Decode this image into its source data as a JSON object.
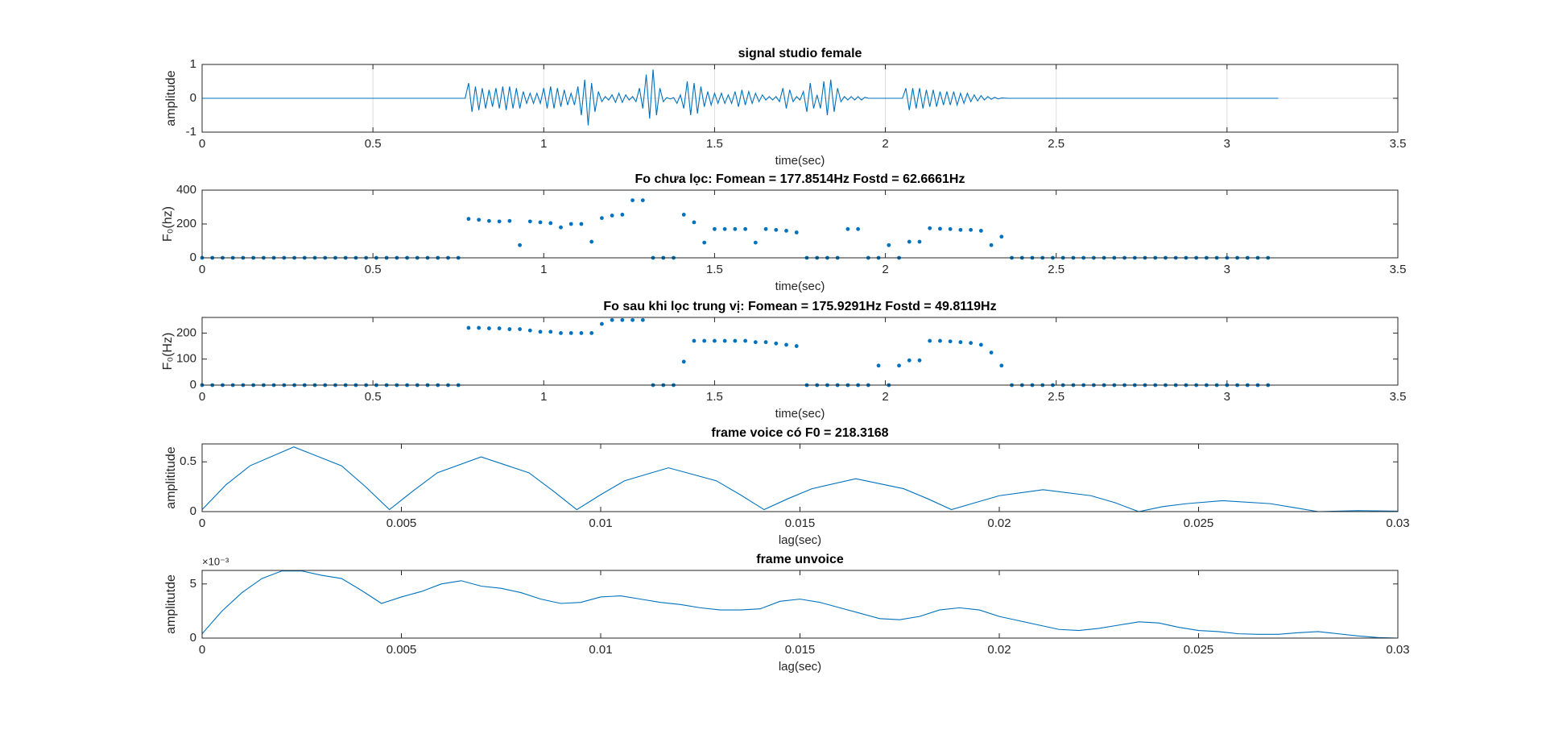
{
  "chart_data": [
    {
      "type": "line",
      "title": "signal studio female",
      "x_label": "time(sec)",
      "y_label": "amplitude",
      "color": "#0072bd",
      "grid": true,
      "x": [
        0,
        0.77,
        0.78,
        0.79,
        0.8,
        0.81,
        0.82,
        0.83,
        0.84,
        0.85,
        0.86,
        0.87,
        0.88,
        0.89,
        0.9,
        0.91,
        0.92,
        0.93,
        0.94,
        0.95,
        0.96,
        0.97,
        0.98,
        0.99,
        1,
        1.01,
        1.02,
        1.03,
        1.04,
        1.05,
        1.06,
        1.07,
        1.08,
        1.09,
        1.1,
        1.11,
        1.12,
        1.13,
        1.14,
        1.15,
        1.16,
        1.17,
        1.18,
        1.19,
        1.2,
        1.21,
        1.22,
        1.23,
        1.24,
        1.25,
        1.26,
        1.27,
        1.28,
        1.29,
        1.3,
        1.31,
        1.32,
        1.33,
        1.34,
        1.35,
        1.36,
        1.37,
        1.38,
        1.39,
        1.4,
        1.41,
        1.42,
        1.43,
        1.44,
        1.45,
        1.46,
        1.47,
        1.48,
        1.49,
        1.5,
        1.51,
        1.52,
        1.53,
        1.54,
        1.55,
        1.56,
        1.57,
        1.58,
        1.59,
        1.6,
        1.61,
        1.62,
        1.63,
        1.64,
        1.65,
        1.66,
        1.67,
        1.68,
        1.69,
        1.7,
        1.71,
        1.72,
        1.73,
        1.74,
        1.75,
        1.76,
        1.77,
        1.78,
        1.79,
        1.8,
        1.81,
        1.82,
        1.83,
        1.84,
        1.85,
        1.86,
        1.87,
        1.88,
        1.89,
        1.9,
        1.91,
        1.92,
        1.93,
        1.94,
        1.95,
        2.05,
        2.06,
        2.07,
        2.08,
        2.09,
        2.1,
        2.11,
        2.12,
        2.13,
        2.14,
        2.15,
        2.16,
        2.17,
        2.18,
        2.19,
        2.2,
        2.21,
        2.22,
        2.23,
        2.24,
        2.25,
        2.26,
        2.27,
        2.28,
        2.29,
        2.3,
        2.31,
        2.32,
        2.33,
        2.34,
        2.36,
        3.15
      ],
      "values": [
        0,
        0,
        0.45,
        -0.4,
        0.35,
        -0.35,
        0.3,
        -0.3,
        0.25,
        -0.25,
        0.3,
        -0.3,
        0.35,
        -0.35,
        0.35,
        -0.3,
        0.3,
        -0.3,
        0.2,
        -0.15,
        0.15,
        -0.15,
        0.15,
        -0.15,
        0.3,
        -0.3,
        0.35,
        -0.3,
        0.3,
        -0.25,
        0.25,
        -0.2,
        0.15,
        -0.2,
        0.35,
        -0.5,
        0.55,
        -0.8,
        0.45,
        -0.4,
        0.2,
        -0.1,
        0.05,
        -0.05,
        0.1,
        -0.12,
        0.15,
        -0.12,
        0.1,
        -0.05,
        0.05,
        -0.1,
        0.3,
        -0.3,
        0.7,
        -0.6,
        0.85,
        -0.5,
        0.3,
        -0.1,
        0.02,
        -0.02,
        0.02,
        -0.15,
        0.1,
        -0.3,
        0.5,
        -0.5,
        0.45,
        -0.45,
        0.35,
        -0.25,
        0.2,
        -0.2,
        0.15,
        -0.15,
        0.15,
        -0.15,
        0.1,
        -0.15,
        0.2,
        -0.25,
        0.25,
        -0.2,
        0.2,
        -0.15,
        0.15,
        -0.1,
        0.1,
        -0.05,
        0.05,
        -0.05,
        0.05,
        -0.1,
        0.3,
        -0.3,
        0.25,
        -0.1,
        0.05,
        -0.05,
        0.2,
        -0.4,
        0.45,
        -0.3,
        0.1,
        -0.3,
        0.5,
        -0.5,
        0.55,
        -0.4,
        0.3,
        -0.1,
        0.05,
        -0.05,
        0.05,
        -0.05,
        0.05,
        -0.05,
        0.03,
        0,
        0,
        0.3,
        -0.35,
        0.3,
        -0.3,
        0.3,
        -0.3,
        0.25,
        -0.25,
        0.25,
        -0.25,
        0.2,
        -0.2,
        0.2,
        -0.2,
        0.2,
        -0.2,
        0.15,
        -0.15,
        0.15,
        -0.1,
        0.1,
        -0.08,
        0.08,
        -0.05,
        0.05,
        -0.03,
        0.03,
        -0.02,
        0.01,
        0,
        0
      ],
      "xlim": [
        0,
        3.5
      ],
      "xticks": [
        0,
        0.5,
        1,
        1.5,
        2,
        2.5,
        3,
        3.5
      ],
      "ylim": [
        -1,
        1
      ],
      "yticks": [
        -1,
        0,
        1
      ]
    },
    {
      "type": "scatter",
      "title": "Fo chưa lọc: Fomean = 177.8514Hz  Fostd = 62.6661Hz",
      "x_label": "time(sec)",
      "y_label": "F₀(hz)",
      "color": "#0072bd",
      "grid": false,
      "x": [
        0,
        0.03,
        0.06,
        0.09,
        0.12,
        0.15,
        0.18,
        0.21,
        0.24,
        0.27,
        0.3,
        0.33,
        0.36,
        0.39,
        0.42,
        0.45,
        0.48,
        0.51,
        0.54,
        0.57,
        0.6,
        0.63,
        0.66,
        0.69,
        0.72,
        0.75,
        0.78,
        0.81,
        0.84,
        0.87,
        0.9,
        0.93,
        0.96,
        0.99,
        1.02,
        1.05,
        1.08,
        1.11,
        1.14,
        1.17,
        1.2,
        1.23,
        1.26,
        1.29,
        1.32,
        1.35,
        1.38,
        1.41,
        1.44,
        1.47,
        1.5,
        1.53,
        1.56,
        1.59,
        1.62,
        1.65,
        1.68,
        1.71,
        1.74,
        1.77,
        1.8,
        1.83,
        1.86,
        1.89,
        1.92,
        1.95,
        1.98,
        2.01,
        2.04,
        2.07,
        2.1,
        2.13,
        2.16,
        2.19,
        2.22,
        2.25,
        2.28,
        2.31,
        2.34,
        2.37,
        2.4,
        2.43,
        2.46,
        2.49,
        2.52,
        2.55,
        2.58,
        2.61,
        2.64,
        2.67,
        2.7,
        2.73,
        2.76,
        2.79,
        2.82,
        2.85,
        2.88,
        2.91,
        2.94,
        2.97,
        3,
        3.03,
        3.06,
        3.09,
        3.12
      ],
      "values": [
        0,
        0,
        0,
        0,
        0,
        0,
        0,
        0,
        0,
        0,
        0,
        0,
        0,
        0,
        0,
        0,
        0,
        0,
        0,
        0,
        0,
        0,
        0,
        0,
        0,
        0,
        230,
        225,
        218,
        215,
        218,
        75,
        215,
        210,
        205,
        180,
        200,
        200,
        95,
        235,
        250,
        255,
        340,
        340,
        0,
        0,
        0,
        255,
        210,
        90,
        170,
        170,
        170,
        170,
        90,
        170,
        165,
        160,
        150,
        0,
        0,
        0,
        0,
        170,
        170,
        0,
        0,
        75,
        0,
        95,
        95,
        175,
        172,
        170,
        165,
        165,
        160,
        75,
        125,
        0,
        0,
        0,
        0,
        0,
        0,
        0,
        0,
        0,
        0,
        0,
        0,
        0,
        0,
        0,
        0,
        0,
        0,
        0,
        0,
        0,
        0,
        0,
        0,
        0,
        0
      ],
      "xlim": [
        0,
        3.5
      ],
      "xticks": [
        0,
        0.5,
        1,
        1.5,
        2,
        2.5,
        3,
        3.5
      ],
      "ylim": [
        0,
        400
      ],
      "yticks": [
        0,
        200,
        400
      ]
    },
    {
      "type": "scatter",
      "title": "Fo sau khi lọc trung vị: Fomean = 175.9291Hz  Fostd = 49.8119Hz",
      "x_label": "time(sec)",
      "y_label": "F₀(Hz)",
      "color": "#0072bd",
      "grid": false,
      "x": [
        0,
        0.03,
        0.06,
        0.09,
        0.12,
        0.15,
        0.18,
        0.21,
        0.24,
        0.27,
        0.3,
        0.33,
        0.36,
        0.39,
        0.42,
        0.45,
        0.48,
        0.51,
        0.54,
        0.57,
        0.6,
        0.63,
        0.66,
        0.69,
        0.72,
        0.75,
        0.78,
        0.81,
        0.84,
        0.87,
        0.9,
        0.93,
        0.96,
        0.99,
        1.02,
        1.05,
        1.08,
        1.11,
        1.14,
        1.17,
        1.2,
        1.23,
        1.26,
        1.29,
        1.32,
        1.35,
        1.38,
        1.41,
        1.44,
        1.47,
        1.5,
        1.53,
        1.56,
        1.59,
        1.62,
        1.65,
        1.68,
        1.71,
        1.74,
        1.77,
        1.8,
        1.83,
        1.86,
        1.89,
        1.92,
        1.95,
        1.98,
        2.01,
        2.04,
        2.07,
        2.1,
        2.13,
        2.16,
        2.19,
        2.22,
        2.25,
        2.28,
        2.31,
        2.34,
        2.37,
        2.4,
        2.43,
        2.46,
        2.49,
        2.52,
        2.55,
        2.58,
        2.61,
        2.64,
        2.67,
        2.7,
        2.73,
        2.76,
        2.79,
        2.82,
        2.85,
        2.88,
        2.91,
        2.94,
        2.97,
        3,
        3.03,
        3.06,
        3.09,
        3.12
      ],
      "values": [
        0,
        0,
        0,
        0,
        0,
        0,
        0,
        0,
        0,
        0,
        0,
        0,
        0,
        0,
        0,
        0,
        0,
        0,
        0,
        0,
        0,
        0,
        0,
        0,
        0,
        0,
        220,
        220,
        218,
        218,
        215,
        215,
        210,
        205,
        205,
        200,
        200,
        200,
        200,
        235,
        250,
        250,
        250,
        250,
        0,
        0,
        0,
        90,
        170,
        170,
        170,
        170,
        170,
        170,
        165,
        165,
        160,
        155,
        150,
        0,
        0,
        0,
        0,
        0,
        0,
        0,
        75,
        0,
        75,
        95,
        95,
        170,
        170,
        168,
        165,
        162,
        155,
        125,
        75,
        0,
        0,
        0,
        0,
        0,
        0,
        0,
        0,
        0,
        0,
        0,
        0,
        0,
        0,
        0,
        0,
        0,
        0,
        0,
        0,
        0,
        0,
        0,
        0,
        0,
        0
      ],
      "xlim": [
        0,
        3.5
      ],
      "xticks": [
        0,
        0.5,
        1,
        1.5,
        2,
        2.5,
        3,
        3.5
      ],
      "ylim": [
        0,
        260
      ],
      "yticks": [
        0,
        100,
        200
      ]
    },
    {
      "type": "line",
      "title": "frame voice có F0 = 218.3168",
      "x_label": "lag(sec)",
      "y_label": "amplititude",
      "color": "#0072bd",
      "grid": false,
      "x": [
        0,
        0.0006,
        0.0012,
        0.0023,
        0.0035,
        0.0041,
        0.0047,
        0.0053,
        0.0059,
        0.007,
        0.0082,
        0.0088,
        0.0094,
        0.01,
        0.0106,
        0.0117,
        0.0129,
        0.0135,
        0.0141,
        0.0147,
        0.0153,
        0.0164,
        0.0176,
        0.0182,
        0.0188,
        0.0194,
        0.02,
        0.0211,
        0.0223,
        0.0229,
        0.0235,
        0.0241,
        0.0247,
        0.0256,
        0.0268,
        0.0274,
        0.028,
        0.029,
        0.03
      ],
      "values": [
        0.02,
        0.27,
        0.46,
        0.65,
        0.46,
        0.25,
        0.02,
        0.21,
        0.39,
        0.55,
        0.39,
        0.21,
        0.02,
        0.17,
        0.31,
        0.44,
        0.31,
        0.17,
        0.02,
        0.13,
        0.23,
        0.33,
        0.23,
        0.13,
        0.02,
        0.09,
        0.16,
        0.22,
        0.16,
        0.09,
        0,
        0.05,
        0.08,
        0.11,
        0.08,
        0.04,
        0,
        0.01,
        0.005
      ],
      "xlim": [
        0,
        0.03
      ],
      "xticks": [
        0,
        0.005,
        0.01,
        0.015,
        0.02,
        0.025,
        0.03
      ],
      "ylim": [
        0,
        0.68
      ],
      "yticks": [
        0,
        0.5
      ]
    },
    {
      "type": "line",
      "title": "frame unvoice",
      "x_label": "lag(sec)",
      "y_label": "amplitutde",
      "y_exponent": "×10⁻³",
      "color": "#0072bd",
      "grid": false,
      "x": [
        0,
        0.0005,
        0.001,
        0.0015,
        0.002,
        0.0025,
        0.003,
        0.0035,
        0.004,
        0.0045,
        0.005,
        0.0055,
        0.006,
        0.0065,
        0.007,
        0.0075,
        0.008,
        0.0085,
        0.009,
        0.0095,
        0.01,
        0.0105,
        0.011,
        0.0115,
        0.012,
        0.0125,
        0.013,
        0.0135,
        0.014,
        0.0145,
        0.015,
        0.0155,
        0.016,
        0.0165,
        0.017,
        0.0175,
        0.018,
        0.0185,
        0.019,
        0.0195,
        0.02,
        0.0205,
        0.021,
        0.0215,
        0.022,
        0.0225,
        0.023,
        0.0235,
        0.024,
        0.0245,
        0.025,
        0.0255,
        0.026,
        0.0265,
        0.027,
        0.0275,
        0.028,
        0.0285,
        0.029,
        0.0295,
        0.03
      ],
      "values": [
        0.0004,
        0.0025,
        0.0042,
        0.0055,
        0.0062,
        0.0062,
        0.0058,
        0.0055,
        0.0044,
        0.0032,
        0.0038,
        0.0043,
        0.005,
        0.0053,
        0.0048,
        0.0046,
        0.0042,
        0.0036,
        0.0032,
        0.0033,
        0.0038,
        0.0039,
        0.0036,
        0.0033,
        0.0031,
        0.0028,
        0.0026,
        0.0026,
        0.0027,
        0.0034,
        0.0036,
        0.0033,
        0.0028,
        0.0023,
        0.0018,
        0.0017,
        0.002,
        0.0026,
        0.0028,
        0.0026,
        0.002,
        0.0016,
        0.0012,
        0.0008,
        0.0007,
        0.0009,
        0.0012,
        0.0015,
        0.0014,
        0.001,
        0.0007,
        0.0006,
        0.0004,
        0.00035,
        0.00035,
        0.0005,
        0.0006,
        0.0004,
        0.0002,
        5e-05,
        0
      ],
      "xlim": [
        0,
        0.03
      ],
      "xticks": [
        0,
        0.005,
        0.01,
        0.015,
        0.02,
        0.025,
        0.03
      ],
      "ylim": [
        0,
        0.00625
      ],
      "yticks": [
        0,
        {
          "value": 0.005,
          "label": "5"
        }
      ]
    }
  ]
}
